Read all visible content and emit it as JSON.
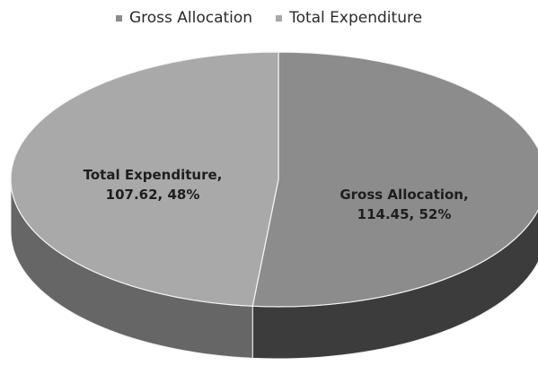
{
  "chart_data": {
    "type": "pie",
    "categories": [
      "Gross Allocation",
      "Total Expenditure"
    ],
    "values": [
      114.45,
      107.62
    ],
    "value_labels": [
      "Gross Allocation, 114.45, 52%",
      "Total Expenditure, 107.62, 48%"
    ],
    "colors": [
      "#8c8c8c",
      "#a9a9a9"
    ],
    "legend": "top"
  }
}
